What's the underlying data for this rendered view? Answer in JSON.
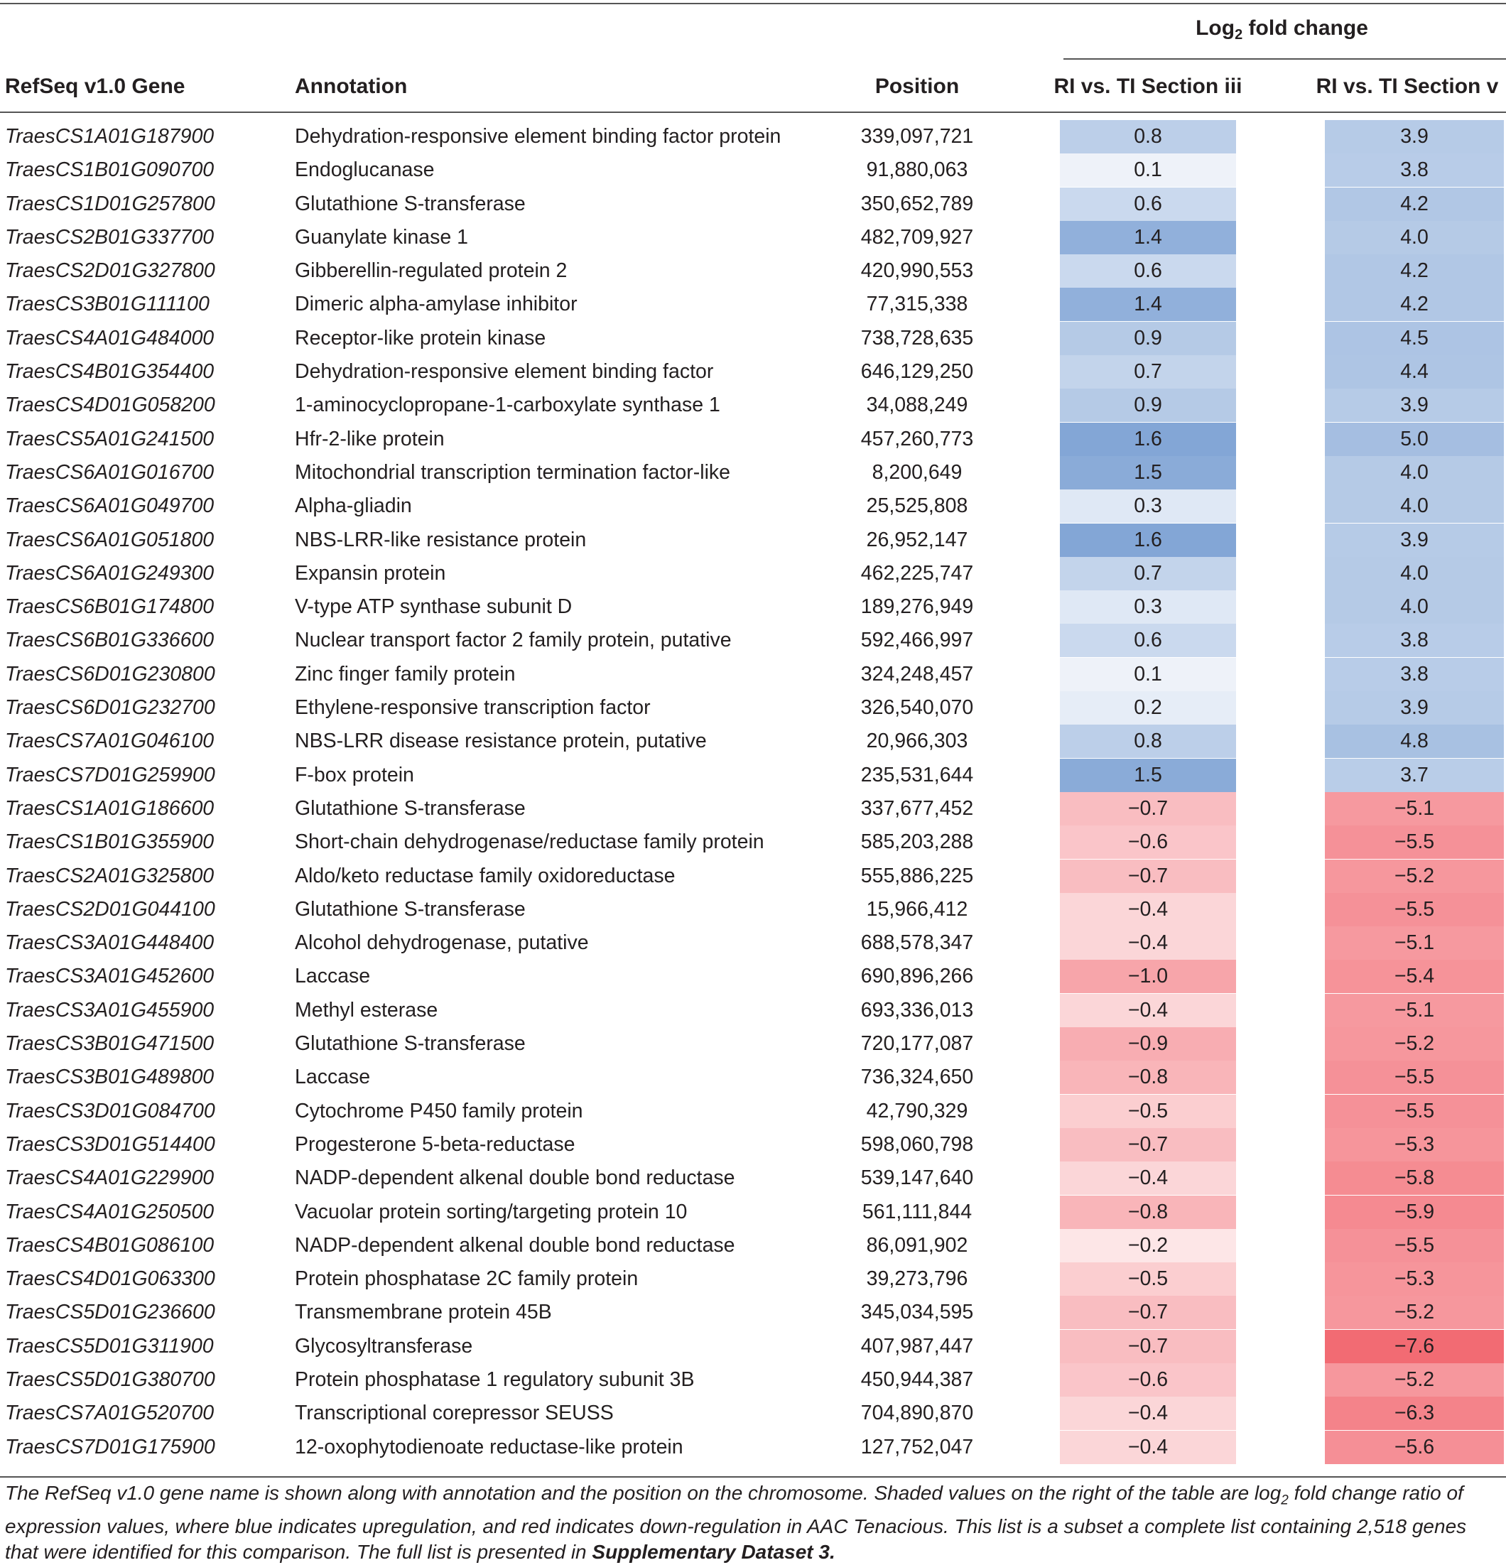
{
  "table": {
    "header": {
      "group_label_prefix": "Log",
      "group_label_sub": "2",
      "group_label_suffix": " fold change",
      "col_gene": "RefSeq v1.0 Gene",
      "col_annotation": "Annotation",
      "col_position": "Position",
      "col_section_iii": "RI vs. TI Section iii",
      "col_section_v": "RI vs. TI Section v"
    },
    "rows": [
      {
        "gene": "TraesCS1A01G187900",
        "annotation": "Dehydration-responsive element binding factor protein",
        "position": "339,097,721",
        "sec3": "0.8",
        "sec5": "3.9"
      },
      {
        "gene": "TraesCS1B01G090700",
        "annotation": "Endoglucanase",
        "position": "91,880,063",
        "sec3": "0.1",
        "sec5": "3.8"
      },
      {
        "gene": "TraesCS1D01G257800",
        "annotation": "Glutathione S-transferase",
        "position": "350,652,789",
        "sec3": "0.6",
        "sec5": "4.2"
      },
      {
        "gene": "TraesCS2B01G337700",
        "annotation": "Guanylate kinase 1",
        "position": "482,709,927",
        "sec3": "1.4",
        "sec5": "4.0"
      },
      {
        "gene": "TraesCS2D01G327800",
        "annotation": "Gibberellin-regulated protein 2",
        "position": "420,990,553",
        "sec3": "0.6",
        "sec5": "4.2"
      },
      {
        "gene": "TraesCS3B01G111100",
        "annotation": "Dimeric alpha-amylase inhibitor",
        "position": "77,315,338",
        "sec3": "1.4",
        "sec5": "4.2"
      },
      {
        "gene": "TraesCS4A01G484000",
        "annotation": "Receptor-like protein kinase",
        "position": "738,728,635",
        "sec3": "0.9",
        "sec5": "4.5"
      },
      {
        "gene": "TraesCS4B01G354400",
        "annotation": "Dehydration-responsive element binding factor",
        "position": "646,129,250",
        "sec3": "0.7",
        "sec5": "4.4"
      },
      {
        "gene": "TraesCS4D01G058200",
        "annotation": "1-aminocyclopropane-1-carboxylate synthase 1",
        "position": "34,088,249",
        "sec3": "0.9",
        "sec5": "3.9"
      },
      {
        "gene": "TraesCS5A01G241500",
        "annotation": "Hfr-2-like protein",
        "position": "457,260,773",
        "sec3": "1.6",
        "sec5": "5.0"
      },
      {
        "gene": "TraesCS6A01G016700",
        "annotation": "Mitochondrial transcription termination factor-like",
        "position": "8,200,649",
        "sec3": "1.5",
        "sec5": "4.0"
      },
      {
        "gene": "TraesCS6A01G049700",
        "annotation": "Alpha-gliadin",
        "position": "25,525,808",
        "sec3": "0.3",
        "sec5": "4.0"
      },
      {
        "gene": "TraesCS6A01G051800",
        "annotation": "NBS-LRR-like resistance protein",
        "position": "26,952,147",
        "sec3": "1.6",
        "sec5": "3.9"
      },
      {
        "gene": "TraesCS6A01G249300",
        "annotation": "Expansin protein",
        "position": "462,225,747",
        "sec3": "0.7",
        "sec5": "4.0"
      },
      {
        "gene": "TraesCS6B01G174800",
        "annotation": "V-type ATP synthase subunit D",
        "position": "189,276,949",
        "sec3": "0.3",
        "sec5": "4.0"
      },
      {
        "gene": "TraesCS6B01G336600",
        "annotation": "Nuclear transport factor 2 family protein, putative",
        "position": "592,466,997",
        "sec3": "0.6",
        "sec5": "3.8"
      },
      {
        "gene": "TraesCS6D01G230800",
        "annotation": "Zinc finger family protein",
        "position": "324,248,457",
        "sec3": "0.1",
        "sec5": "3.8"
      },
      {
        "gene": "TraesCS6D01G232700",
        "annotation": "Ethylene-responsive transcription factor",
        "position": "326,540,070",
        "sec3": "0.2",
        "sec5": "3.9"
      },
      {
        "gene": "TraesCS7A01G046100",
        "annotation": "NBS-LRR disease resistance protein, putative",
        "position": "20,966,303",
        "sec3": "0.8",
        "sec5": "4.8"
      },
      {
        "gene": "TraesCS7D01G259900",
        "annotation": "F-box protein",
        "position": "235,531,644",
        "sec3": "1.5",
        "sec5": "3.7"
      },
      {
        "gene": "TraesCS1A01G186600",
        "annotation": "Glutathione S-transferase",
        "position": "337,677,452",
        "sec3": "−0.7",
        "sec5": "−5.1"
      },
      {
        "gene": "TraesCS1B01G355900",
        "annotation": "Short-chain dehydrogenase/reductase family protein",
        "position": "585,203,288",
        "sec3": "−0.6",
        "sec5": "−5.5"
      },
      {
        "gene": "TraesCS2A01G325800",
        "annotation": "Aldo/keto reductase family oxidoreductase",
        "position": "555,886,225",
        "sec3": "−0.7",
        "sec5": "−5.2"
      },
      {
        "gene": "TraesCS2D01G044100",
        "annotation": "Glutathione S-transferase",
        "position": "15,966,412",
        "sec3": "−0.4",
        "sec5": "−5.5"
      },
      {
        "gene": "TraesCS3A01G448400",
        "annotation": "Alcohol dehydrogenase, putative",
        "position": "688,578,347",
        "sec3": "−0.4",
        "sec5": "−5.1"
      },
      {
        "gene": "TraesCS3A01G452600",
        "annotation": "Laccase",
        "position": "690,896,266",
        "sec3": "−1.0",
        "sec5": "−5.4"
      },
      {
        "gene": "TraesCS3A01G455900",
        "annotation": "Methyl esterase",
        "position": "693,336,013",
        "sec3": "−0.4",
        "sec5": "−5.1"
      },
      {
        "gene": "TraesCS3B01G471500",
        "annotation": "Glutathione S-transferase",
        "position": "720,177,087",
        "sec3": "−0.9",
        "sec5": "−5.2"
      },
      {
        "gene": "TraesCS3B01G489800",
        "annotation": "Laccase",
        "position": "736,324,650",
        "sec3": "−0.8",
        "sec5": "−5.5"
      },
      {
        "gene": "TraesCS3D01G084700",
        "annotation": "Cytochrome P450 family protein",
        "position": "42,790,329",
        "sec3": "−0.5",
        "sec5": "−5.5"
      },
      {
        "gene": "TraesCS3D01G514400",
        "annotation": "Progesterone 5-beta-reductase",
        "position": "598,060,798",
        "sec3": "−0.7",
        "sec5": "−5.3"
      },
      {
        "gene": "TraesCS4A01G229900",
        "annotation": "NADP-dependent alkenal double bond reductase",
        "position": "539,147,640",
        "sec3": "−0.4",
        "sec5": "−5.8"
      },
      {
        "gene": "TraesCS4A01G250500",
        "annotation": "Vacuolar protein sorting/targeting protein 10",
        "position": "561,111,844",
        "sec3": "−0.8",
        "sec5": "−5.9"
      },
      {
        "gene": "TraesCS4B01G086100",
        "annotation": "NADP-dependent alkenal double bond reductase",
        "position": "86,091,902",
        "sec3": "−0.2",
        "sec5": "−5.5"
      },
      {
        "gene": "TraesCS4D01G063300",
        "annotation": "Protein phosphatase 2C family protein",
        "position": "39,273,796",
        "sec3": "−0.5",
        "sec5": "−5.3"
      },
      {
        "gene": "TraesCS5D01G236600",
        "annotation": "Transmembrane protein 45B",
        "position": "345,034,595",
        "sec3": "−0.7",
        "sec5": "−5.2"
      },
      {
        "gene": "TraesCS5D01G311900",
        "annotation": "Glycosyltransferase",
        "position": "407,987,447",
        "sec3": "−0.7",
        "sec5": "−7.6"
      },
      {
        "gene": "TraesCS5D01G380700",
        "annotation": "Protein phosphatase 1 regulatory subunit 3B",
        "position": "450,944,387",
        "sec3": "−0.6",
        "sec5": "−5.2"
      },
      {
        "gene": "TraesCS7A01G520700",
        "annotation": "Transcriptional corepressor SEUSS",
        "position": "704,890,870",
        "sec3": "−0.4",
        "sec5": "−6.3"
      },
      {
        "gene": "TraesCS7D01G175900",
        "annotation": "12-oxophytodienoate reductase-like protein",
        "position": "127,752,047",
        "sec3": "−0.4",
        "sec5": "−5.6"
      }
    ]
  },
  "footnote": {
    "part1": "The RefSeq v1.0 gene name is shown along with annotation and the position on the chromosome. Shaded values on the right of the table are log",
    "sub": "2",
    "part2": " fold change ratio of expression values, where blue indicates upregulation, and red indicates down-regulation in AAC Tenacious. This list is a subset a complete list containing 2,518 genes that were identified for this comparison. The full list is presented in ",
    "bold": "Supplementary Dataset 3.",
    "colors": {
      "up": "#5b8ac6",
      "down": "#f0555f"
    }
  }
}
